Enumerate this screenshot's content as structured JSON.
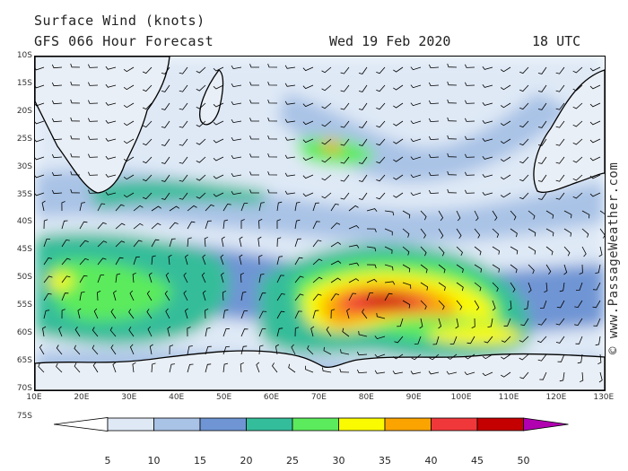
{
  "header": {
    "title": "Surface Wind (knots)",
    "model": "GFS 066 Hour Forecast",
    "date": "Wed 19 Feb 2020",
    "time": "18 UTC"
  },
  "watermark": "© www.PassageWeather.com",
  "latitude_labels": [
    "10S",
    "15S",
    "20S",
    "25S",
    "30S",
    "35S",
    "40S",
    "45S",
    "50S",
    "55S",
    "60S",
    "65S",
    "70S",
    "75S"
  ],
  "longitude_labels": [
    "10E",
    "20E",
    "30E",
    "40E",
    "50E",
    "60E",
    "70E",
    "80E",
    "90E",
    "100E",
    "110E",
    "120E",
    "130E"
  ],
  "colorbar": {
    "ticks": [
      "5",
      "10",
      "15",
      "20",
      "25",
      "30",
      "35",
      "40",
      "45",
      "50"
    ],
    "colors": [
      "#ffffff",
      "#dfe9f6",
      "#a9c3e6",
      "#6f95d4",
      "#34bd9a",
      "#5ceb5c",
      "#fafa00",
      "#fba400",
      "#f0383b",
      "#c50000",
      "#b000b0"
    ]
  }
}
